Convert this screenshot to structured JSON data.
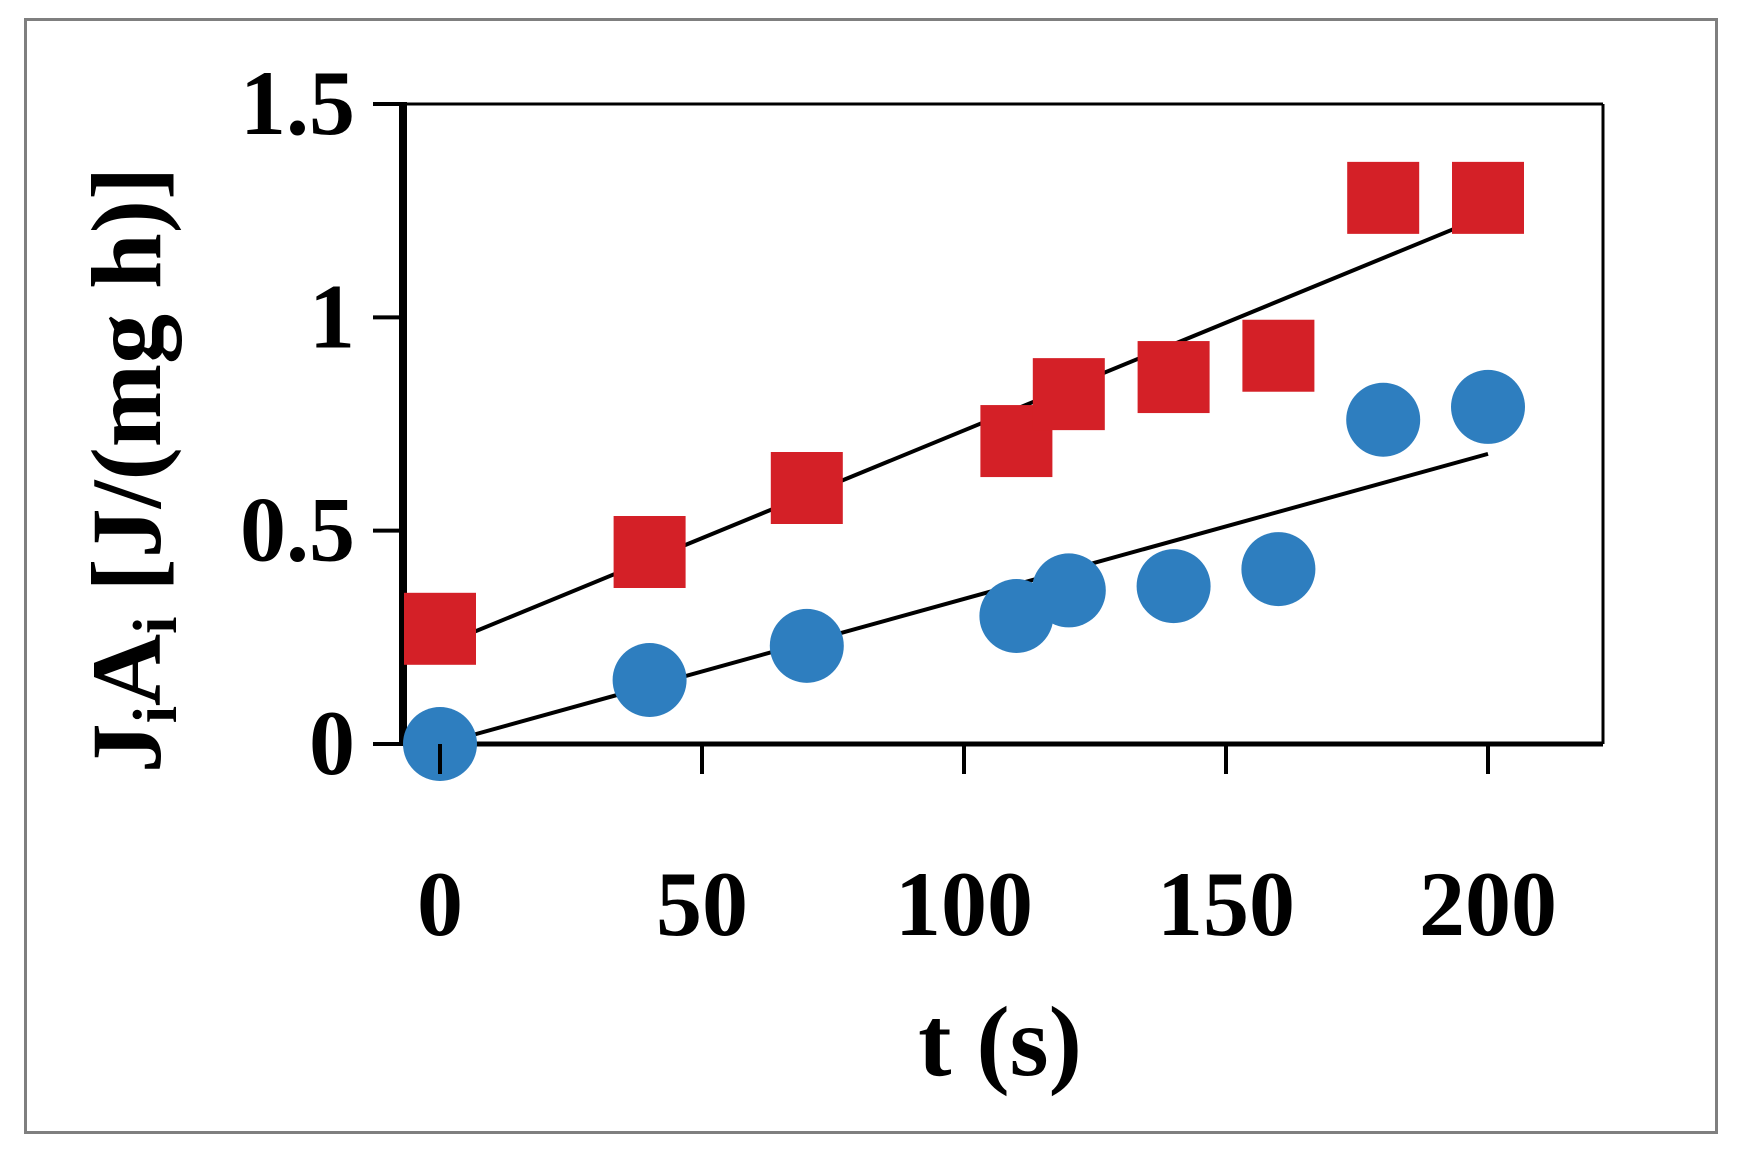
{
  "chart_data": {
    "type": "scatter",
    "title": "",
    "xlabel": "t (s)",
    "ylabel": {
      "parts": [
        {
          "text": "J",
          "sub": false
        },
        {
          "text": "i",
          "sub": true
        },
        {
          "text": "A",
          "sub": false
        },
        {
          "text": "i",
          "sub": true
        },
        {
          "text": " [J/(mg h)]",
          "sub": false
        }
      ]
    },
    "xlim": [
      0,
      220
    ],
    "ylim": [
      0,
      1.5
    ],
    "xticks": [
      0,
      50,
      100,
      150,
      200
    ],
    "xtick_labels": [
      "0",
      "50",
      "100",
      "150",
      "200"
    ],
    "yticks": [
      0,
      0.5,
      1,
      1.5
    ],
    "ytick_labels": [
      "0",
      "0.5",
      "1",
      "1.5"
    ],
    "grid": false,
    "legend": false,
    "series": [
      {
        "marker": "square",
        "color": "#d42027",
        "x": [
          0,
          40,
          70,
          110,
          120,
          140,
          160,
          180,
          200
        ],
        "y": [
          0.27,
          0.45,
          0.6,
          0.71,
          0.82,
          0.86,
          0.91,
          1.28,
          1.28
        ],
        "trend": {
          "x": [
            0,
            200
          ],
          "y": [
            0.23,
            1.24
          ]
        }
      },
      {
        "marker": "circle",
        "color": "#2e7ebf",
        "x": [
          0,
          40,
          70,
          110,
          120,
          140,
          160,
          180,
          200
        ],
        "y": [
          0.0,
          0.15,
          0.23,
          0.3,
          0.36,
          0.37,
          0.41,
          0.76,
          0.79
        ],
        "trend": {
          "x": [
            0,
            200
          ],
          "y": [
            0.0,
            0.68
          ]
        }
      }
    ],
    "trend_color": "#000000"
  }
}
